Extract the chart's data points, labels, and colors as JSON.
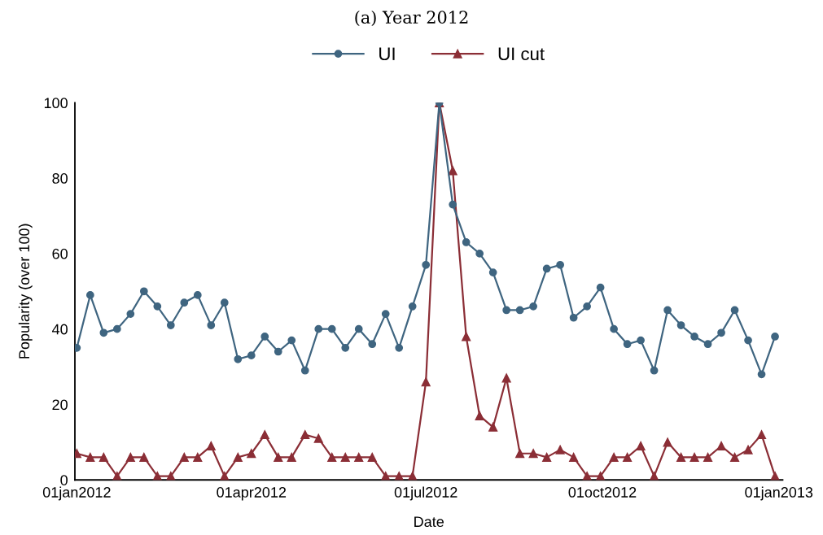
{
  "chart_data": {
    "type": "line",
    "title": "(a) Year 2012",
    "xlabel": "Date",
    "ylabel": "Popularity (over 100)",
    "x": [
      "2012-01-01",
      "2012-01-08",
      "2012-01-15",
      "2012-01-22",
      "2012-01-29",
      "2012-02-05",
      "2012-02-12",
      "2012-02-19",
      "2012-02-26",
      "2012-03-04",
      "2012-03-11",
      "2012-03-18",
      "2012-03-25",
      "2012-04-01",
      "2012-04-08",
      "2012-04-15",
      "2012-04-22",
      "2012-04-29",
      "2012-05-06",
      "2012-05-13",
      "2012-05-20",
      "2012-05-27",
      "2012-06-03",
      "2012-06-10",
      "2012-06-17",
      "2012-06-24",
      "2012-07-01",
      "2012-07-08",
      "2012-07-15",
      "2012-07-22",
      "2012-07-29",
      "2012-08-05",
      "2012-08-12",
      "2012-08-19",
      "2012-08-26",
      "2012-09-02",
      "2012-09-09",
      "2012-09-16",
      "2012-09-23",
      "2012-09-30",
      "2012-10-07",
      "2012-10-14",
      "2012-10-21",
      "2012-10-28",
      "2012-11-04",
      "2012-11-11",
      "2012-11-18",
      "2012-11-25",
      "2012-12-02",
      "2012-12-09",
      "2012-12-16",
      "2012-12-23",
      "2012-12-30"
    ],
    "series": [
      {
        "name": "UI",
        "color": "#3f6580",
        "marker": "circle",
        "values": [
          35,
          49,
          39,
          40,
          44,
          50,
          46,
          41,
          47,
          49,
          41,
          47,
          32,
          33,
          38,
          34,
          37,
          29,
          40,
          40,
          35,
          40,
          36,
          44,
          35,
          46,
          57,
          100,
          73,
          63,
          60,
          55,
          45,
          45,
          46,
          56,
          57,
          43,
          46,
          51,
          40,
          36,
          37,
          29,
          45,
          41,
          38,
          36,
          39,
          45,
          37,
          28,
          38
        ]
      },
      {
        "name": "UI cut",
        "color": "#8b2e36",
        "marker": "triangle",
        "values": [
          7,
          6,
          6,
          1,
          6,
          6,
          1,
          1,
          6,
          6,
          9,
          1,
          6,
          7,
          12,
          6,
          6,
          12,
          11,
          6,
          6,
          6,
          6,
          1,
          1,
          1,
          26,
          100,
          82,
          38,
          17,
          14,
          27,
          7,
          7,
          6,
          8,
          6,
          1,
          1,
          6,
          6,
          9,
          1,
          10,
          6,
          6,
          6,
          9,
          6,
          8,
          12,
          1
        ]
      }
    ],
    "xlim": [
      "2011-12-31",
      "2013-01-03"
    ],
    "xticks": [
      {
        "value": "2012-01-01",
        "label": "01jan2012"
      },
      {
        "value": "2012-04-01",
        "label": "01apr2012"
      },
      {
        "value": "2012-07-01",
        "label": "01jul2012"
      },
      {
        "value": "2012-10-01",
        "label": "01oct2012"
      },
      {
        "value": "2013-01-01",
        "label": "01jan2013"
      }
    ],
    "ylim": [
      0,
      100
    ],
    "yticks": [
      0,
      20,
      40,
      60,
      80,
      100
    ],
    "grid": false,
    "legend": "top",
    "line_style": "solid"
  }
}
